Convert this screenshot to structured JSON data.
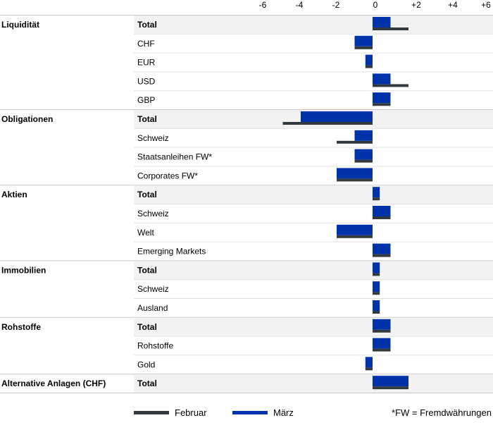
{
  "chart_data": {
    "type": "bar",
    "orientation": "horizontal",
    "x_ticks": [
      "-6",
      "-4",
      "-2",
      "0",
      "+2",
      "+4",
      "+6"
    ],
    "xlim": [
      -6,
      6
    ],
    "series": [
      {
        "name": "Februar",
        "color": "#333a3d"
      },
      {
        "name": "März",
        "color": "#0033aa"
      }
    ],
    "groups": [
      {
        "name": "Liquidität",
        "rows": [
          {
            "label": "Total",
            "bold": true,
            "februar": 2,
            "maerz": 1
          },
          {
            "label": "CHF",
            "bold": false,
            "februar": -1,
            "maerz": -1
          },
          {
            "label": "EUR",
            "bold": false,
            "februar": -0.4,
            "maerz": -0.4
          },
          {
            "label": "USD",
            "bold": false,
            "februar": 2,
            "maerz": 1
          },
          {
            "label": "GBP",
            "bold": false,
            "februar": 1,
            "maerz": 1
          }
        ]
      },
      {
        "name": "Obligationen",
        "rows": [
          {
            "label": "Total",
            "bold": true,
            "februar": -5,
            "maerz": -4
          },
          {
            "label": "Schweiz",
            "bold": false,
            "februar": -2,
            "maerz": -1
          },
          {
            "label": "Staatsanleihen FW*",
            "bold": false,
            "februar": -1,
            "maerz": -1
          },
          {
            "label": "Corporates FW*",
            "bold": false,
            "februar": -2,
            "maerz": -2
          }
        ]
      },
      {
        "name": "Aktien",
        "rows": [
          {
            "label": "Total",
            "bold": true,
            "februar": 0.4,
            "maerz": 0.4
          },
          {
            "label": "Schweiz",
            "bold": false,
            "februar": 1,
            "maerz": 1
          },
          {
            "label": "Welt",
            "bold": false,
            "februar": -2,
            "maerz": -2
          },
          {
            "label": "Emerging Markets",
            "bold": false,
            "februar": 1,
            "maerz": 1
          }
        ]
      },
      {
        "name": "Immobilien",
        "rows": [
          {
            "label": "Total",
            "bold": true,
            "februar": 0.4,
            "maerz": 0.4
          },
          {
            "label": "Schweiz",
            "bold": false,
            "februar": 0.4,
            "maerz": 0.4
          },
          {
            "label": "Ausland",
            "bold": false,
            "februar": 0.4,
            "maerz": 0.4
          }
        ]
      },
      {
        "name": "Rohstoffe",
        "rows": [
          {
            "label": "Total",
            "bold": true,
            "februar": 1,
            "maerz": 1
          },
          {
            "label": "Rohstoffe",
            "bold": false,
            "februar": 1,
            "maerz": 1
          },
          {
            "label": "Gold",
            "bold": false,
            "februar": -0.4,
            "maerz": -0.4
          }
        ]
      },
      {
        "name": "Alternative Anlagen (CHF)",
        "rows": [
          {
            "label": "Total",
            "bold": true,
            "februar": 2,
            "maerz": 2
          }
        ]
      }
    ],
    "footnote": "*FW = Fremdwährungen",
    "legend_position": "bottom"
  }
}
